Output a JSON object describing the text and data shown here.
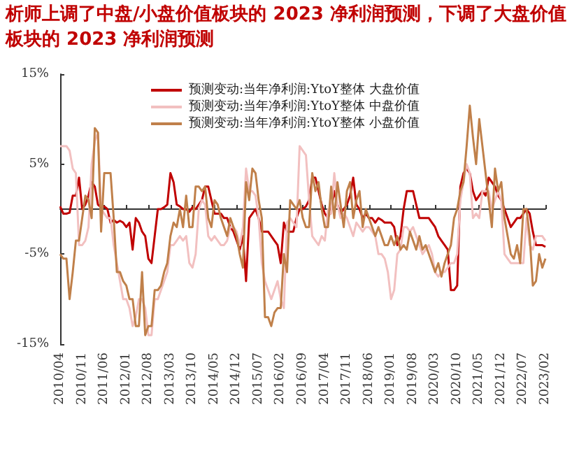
{
  "chart_data": {
    "type": "line",
    "title": "析师上调了中盘/小盘价值板块的 2023 净利润预测，下调了大盘价值板块的 2023 净利润预测",
    "categories": [
      "2010/04",
      null,
      null,
      null,
      null,
      null,
      null,
      "2010/11",
      null,
      null,
      null,
      null,
      null,
      null,
      "2011/06",
      null,
      null,
      null,
      null,
      null,
      null,
      "2012/01",
      null,
      null,
      null,
      null,
      null,
      null,
      "2012/08",
      null,
      null,
      null,
      null,
      null,
      null,
      "2013/03",
      null,
      null,
      null,
      null,
      null,
      null,
      "2013/10",
      null,
      null,
      null,
      null,
      null,
      null,
      "2014/05",
      null,
      null,
      null,
      null,
      null,
      null,
      "2014/12",
      null,
      null,
      null,
      null,
      null,
      null,
      "2015/07",
      null,
      null,
      null,
      null,
      null,
      null,
      "2016/02",
      null,
      null,
      null,
      null,
      null,
      null,
      "2016/09",
      null,
      null,
      null,
      null,
      null,
      null,
      "2017/04",
      null,
      null,
      null,
      null,
      null,
      null,
      "2017/11",
      null,
      null,
      null,
      null,
      null,
      null,
      "2018/06",
      null,
      null,
      null,
      null,
      null,
      null,
      "2019/01",
      null,
      null,
      null,
      null,
      null,
      null,
      "2019/08",
      null,
      null,
      null,
      null,
      null,
      null,
      "2020/03",
      null,
      null,
      null,
      null,
      null,
      null,
      "2020/10",
      null,
      null,
      null,
      null,
      null,
      null,
      "2021/05",
      null,
      null,
      null,
      null,
      null,
      null,
      "2021/12",
      null,
      null,
      null,
      null,
      null,
      null,
      "2022/07",
      null,
      null,
      null,
      null,
      null,
      null,
      "2023/02"
    ],
    "series": [
      {
        "name": "预测变动:当年净利润:YtoY整体 大盘价值",
        "color": "#c00000",
        "values": [
          0.3,
          -0.5,
          -0.5,
          -0.4,
          1.5,
          1.5,
          3.5,
          0,
          0.5,
          1.5,
          3,
          2.5,
          0.5,
          0.2,
          0.3,
          0,
          -1.5,
          -1.2,
          -1.5,
          -1.3,
          -1.5,
          -2,
          -1.5,
          -4.5,
          -1,
          -1.5,
          -2.5,
          -3,
          -5.5,
          -6,
          -3,
          0,
          0,
          0.2,
          0.5,
          4,
          3,
          0.5,
          0.3,
          0,
          0,
          -0.3,
          0.2,
          0,
          0.5,
          1,
          2.5,
          2.5,
          1,
          -0.5,
          -0.5,
          -0.5,
          -1,
          -1,
          -2,
          -2.5,
          -3.5,
          -4.5,
          -3,
          -8,
          -1,
          -0.5,
          0,
          -1,
          -2.5,
          -2.5,
          -2.5,
          -3,
          -3.5,
          -4,
          -6,
          -1.5,
          -2.5,
          -2.5,
          -2.5,
          -1,
          0,
          0,
          0.3,
          1,
          3.5,
          3.5,
          2,
          0.5,
          -0.5,
          -1,
          0,
          2,
          0.5,
          -0.5,
          0,
          0.5,
          1.5,
          3.5,
          0.5,
          0,
          -1,
          -0.5,
          -1,
          -1,
          -1.5,
          -1,
          -1.2,
          -1.5,
          -1.5,
          -1.5,
          -2,
          -4,
          -3,
          0,
          2,
          2,
          2,
          0.5,
          -1,
          -1,
          -1,
          -1,
          -1.5,
          -2,
          -3,
          -3.5,
          -4,
          -4.5,
          -9,
          -9,
          -8.5,
          2.5,
          4,
          4.5,
          4,
          2,
          1,
          1.5,
          2,
          1.5,
          3.5,
          3,
          2.5,
          1.5,
          1,
          0,
          -1,
          -2,
          -1.5,
          -1,
          -1,
          -0.5,
          0,
          -0.5,
          -2.5,
          -4,
          -4,
          -4,
          -4.2
        ]
      },
      {
        "name": "预测变动:当年净利润:YtoY整体 中盘价值",
        "color": "#f2c0c0",
        "values": [
          7,
          7,
          7,
          6.5,
          4.5,
          4,
          -4,
          -4,
          -3.5,
          -2,
          5,
          7.5,
          8.5,
          0,
          -0.5,
          -1,
          -1,
          -4,
          -6,
          -8,
          -10,
          -10,
          -11,
          -13,
          -12,
          -10,
          -10,
          -11,
          -14,
          -14,
          -10,
          -10,
          -9,
          -8,
          -7,
          -4,
          -4,
          -3.5,
          -3,
          -3.5,
          -3,
          -6,
          -6.5,
          -5,
          0,
          1,
          0.5,
          -3,
          -3.5,
          -3,
          -3.5,
          -4,
          -4,
          -3.5,
          -2,
          -2,
          -2.5,
          -4,
          -2,
          4.5,
          2,
          2,
          1.5,
          -1,
          -6,
          -8,
          -9,
          -10,
          -9,
          -8,
          -10,
          -11,
          -1.5,
          -1,
          -1.5,
          -2,
          7,
          6.5,
          6,
          1,
          -3,
          -3.5,
          -4,
          -3,
          -3.5,
          0,
          -0.5,
          4,
          0.5,
          -1,
          -0.5,
          -1,
          -2,
          -3,
          -1.5,
          -2,
          -2.5,
          -2,
          -2,
          -2.5,
          -3,
          -5,
          -5,
          -5.5,
          -7,
          -10,
          -9,
          -5,
          -4.5,
          -2,
          -2,
          -2.5,
          -2,
          -3,
          -4,
          -5,
          -4.5,
          -4,
          -5,
          -7,
          -7.5,
          -7,
          -7,
          -6.5,
          -6,
          -6,
          -5,
          1,
          3,
          5,
          4,
          -1,
          -0.5,
          -1,
          2,
          2,
          2,
          0,
          1,
          2,
          1,
          -5,
          -5.5,
          -6,
          -6,
          -6,
          -6,
          -6,
          -1,
          -4,
          -4.5,
          -3,
          -3,
          -3,
          -3.5
        ]
      },
      {
        "name": "预测变动:当年净利润:YtoY整体 小盘价值",
        "color": "#c0804a",
        "values": [
          -5,
          -5.5,
          -5.5,
          -10,
          -7,
          -3.5,
          -3.5,
          -1,
          1.5,
          1,
          -1,
          9,
          8.5,
          -2.5,
          4,
          4,
          4,
          -1,
          -7,
          -7,
          -8,
          -8.5,
          -10,
          -10,
          -13,
          -13,
          -7,
          -14,
          -13,
          -13,
          -9,
          -9,
          -8.5,
          -7,
          -6,
          -3,
          -1.5,
          -2,
          0,
          -2,
          1.5,
          -2,
          -2,
          2.5,
          2.5,
          2,
          2.5,
          -1,
          -2,
          1,
          0.5,
          -1,
          -2,
          -3,
          -1,
          -2,
          -3,
          -5,
          -6.5,
          3,
          1,
          4.5,
          4,
          1,
          -1,
          -12,
          -12,
          -13,
          -11.5,
          -11,
          -11,
          -5,
          -7,
          1,
          0.5,
          0,
          1,
          -1,
          -2,
          -2,
          4,
          2,
          3,
          0,
          -2,
          -2,
          2.5,
          -1,
          3,
          0.5,
          -2,
          2,
          3,
          -1,
          1,
          2,
          -2,
          0,
          -1,
          -2,
          -3,
          -2,
          -3,
          -4,
          -4,
          -3,
          -4,
          -3,
          -4.5,
          -4,
          -4.5,
          -2.5,
          -3.5,
          -4.5,
          -3,
          -4.5,
          -4,
          -5,
          -6,
          -7,
          -6,
          -7.5,
          -6,
          -5,
          -4,
          -1,
          0,
          2,
          3,
          7,
          11.5,
          8,
          5,
          10,
          7,
          4,
          1,
          -2,
          4.5,
          2,
          3,
          -1,
          -3,
          -5,
          -5.5,
          -4,
          -6,
          0,
          0,
          -3,
          -8.5,
          -8,
          -5,
          -6.5,
          -5.5
        ]
      }
    ],
    "ylim": [
      -15,
      15
    ],
    "yticks": [
      {
        "value": -15,
        "label": "-15%"
      },
      {
        "value": -5,
        "label": "-5%"
      },
      {
        "value": 5,
        "label": "5%"
      },
      {
        "value": 15,
        "label": "15%"
      }
    ],
    "legend": "top",
    "marker": "none",
    "line_style": "solid"
  }
}
